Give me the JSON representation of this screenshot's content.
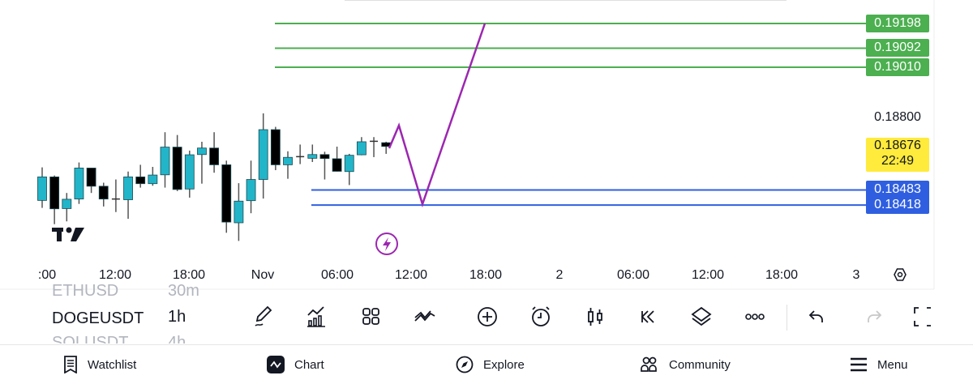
{
  "chart_data": {
    "type": "candlestick",
    "symbol": "DOGEUSDT",
    "interval": "1h",
    "x_labels": [
      ":00",
      "12:00",
      "18:00",
      "Nov",
      "06:00",
      "12:00",
      "18:00",
      "2",
      "06:00",
      "12:00",
      "18:00",
      "3"
    ],
    "price_labels": [
      "0.18800"
    ],
    "candles": [
      [
        0.18438,
        0.1858,
        0.18406,
        0.18539
      ],
      [
        0.18539,
        0.18545,
        0.18336,
        0.18402
      ],
      [
        0.18403,
        0.1847,
        0.18348,
        0.18443
      ],
      [
        0.18444,
        0.18601,
        0.18423,
        0.18577
      ],
      [
        0.18577,
        0.18577,
        0.1847,
        0.18499
      ],
      [
        0.18499,
        0.18514,
        0.18412,
        0.18444
      ],
      [
        0.18444,
        0.18528,
        0.18388,
        0.18444
      ],
      [
        0.18441,
        0.18562,
        0.18359,
        0.18539
      ],
      [
        0.18539,
        0.18591,
        0.18493,
        0.1851
      ],
      [
        0.1851,
        0.18582,
        0.18501,
        0.18547
      ],
      [
        0.18548,
        0.18731,
        0.18493,
        0.18667
      ],
      [
        0.18667,
        0.18719,
        0.18478,
        0.18485
      ],
      [
        0.18487,
        0.18652,
        0.1845,
        0.18634
      ],
      [
        0.18635,
        0.1869,
        0.1851,
        0.18663
      ],
      [
        0.18663,
        0.18731,
        0.18557,
        0.18591
      ],
      [
        0.18591,
        0.18609,
        0.18299,
        0.18345
      ],
      [
        0.18342,
        0.18512,
        0.18264,
        0.18435
      ],
      [
        0.18437,
        0.18609,
        0.18383,
        0.18528
      ],
      [
        0.18528,
        0.18812,
        0.18446,
        0.18742
      ],
      [
        0.18742,
        0.18754,
        0.18568,
        0.18591
      ],
      [
        0.18591,
        0.18649,
        0.18531,
        0.18623
      ],
      [
        0.18626,
        0.18678,
        0.18594,
        0.18626
      ],
      [
        0.18619,
        0.18678,
        0.18603,
        0.18635
      ],
      [
        0.18635,
        0.18647,
        0.18528,
        0.18618
      ],
      [
        0.18617,
        0.18669,
        0.18562,
        0.18563
      ],
      [
        0.18562,
        0.18638,
        0.18504,
        0.18632
      ],
      [
        0.18634,
        0.1871,
        0.18632,
        0.1869
      ],
      [
        0.18692,
        0.1871,
        0.18624,
        0.18692
      ],
      [
        0.18686,
        0.1869,
        0.18638,
        0.1867
      ]
    ],
    "resistance_lines": [
      "0.19198",
      "0.19092",
      "0.19010"
    ],
    "support_lines": [
      "0.18483",
      "0.18418"
    ],
    "projection_path_prices": [
      0.18662,
      0.1876,
      0.18422,
      0.19198
    ],
    "current_price": "0.18676",
    "countdown": "22:49",
    "colors": {
      "up": "#22b5c9",
      "down": "#000000",
      "resistance": "#4caf50",
      "support": "#2f5fe0",
      "projection": "#9c27b0",
      "current": "#ffeb3b"
    }
  },
  "symbol_list": [
    {
      "symbol": "ETHUSD",
      "interval": "30m"
    },
    {
      "symbol": "DOGEUSDT",
      "interval": "1h"
    },
    {
      "symbol": "SOLUSDT",
      "interval": "4h"
    }
  ],
  "toolbar_icons": [
    "pencil-icon",
    "indicators-icon",
    "layout-grid-icon",
    "pattern-icon",
    "add-icon",
    "alarm-icon",
    "candle-style-icon",
    "replay-icon",
    "layers-icon",
    "more-icon",
    "undo-icon",
    "redo-icon",
    "fullscreen-icon"
  ],
  "nav": {
    "watchlist": "Watchlist",
    "chart": "Chart",
    "explore": "Explore",
    "community": "Community",
    "menu": "Menu"
  }
}
